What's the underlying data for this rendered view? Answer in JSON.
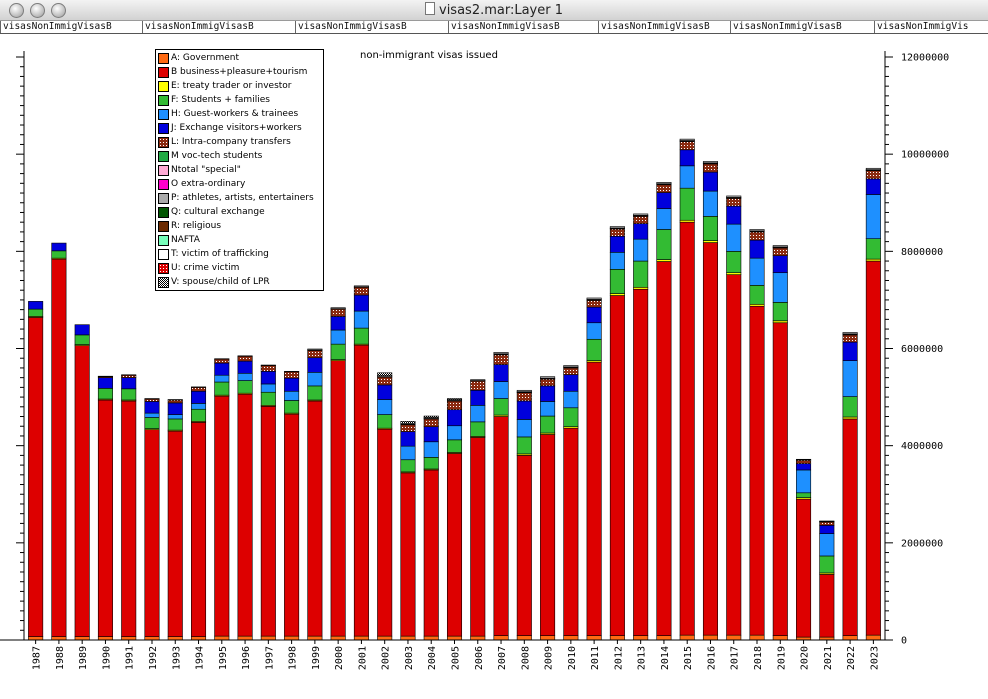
{
  "window": {
    "title": "visas2.mar:Layer 1"
  },
  "column_headers": [
    "visasNonImmigVisasB",
    "visasNonImmigVisasB",
    "visasNonImmigVisasB",
    "visasNonImmigVisasB",
    "visasNonImmigVisasB",
    "visasNonImmigVisasB",
    "visasNonImmigVis"
  ],
  "legend": [
    {
      "label": "A: Government",
      "color": "#ff6a13",
      "pattern": ""
    },
    {
      "label": "B business+pleasure+tourism",
      "color": "#dd0000",
      "pattern": ""
    },
    {
      "label": "E: treaty trader or investor",
      "color": "#ffff00",
      "pattern": ""
    },
    {
      "label": "F: Students + families",
      "color": "#33bb33",
      "pattern": ""
    },
    {
      "label": "H: Guest-workers & trainees",
      "color": "#1e90ff",
      "pattern": ""
    },
    {
      "label": "J: Exchange visitors+workers",
      "color": "#0000dd",
      "pattern": ""
    },
    {
      "label": "L: Intra-company transfers",
      "color": "#8b2a10",
      "pattern": "dots"
    },
    {
      "label": "M voc-tech students",
      "color": "#22aa44",
      "pattern": ""
    },
    {
      "label": "Ntotal \"special\"",
      "color": "#ffaad4",
      "pattern": ""
    },
    {
      "label": "O extra-ordinary",
      "color": "#ff00cc",
      "pattern": ""
    },
    {
      "label": "P: athletes, artists, entertainers",
      "color": "#aaaaaa",
      "pattern": ""
    },
    {
      "label": "Q: cultural exchange",
      "color": "#005500",
      "pattern": ""
    },
    {
      "label": "R: religious",
      "color": "#6b2a00",
      "pattern": ""
    },
    {
      "label": "NAFTA",
      "color": "#77ffbb",
      "pattern": ""
    },
    {
      "label": "T: victim of trafficking",
      "color": "#ffffff",
      "pattern": ""
    },
    {
      "label": "U: crime victim",
      "color": "#dd0000",
      "pattern": "grid"
    },
    {
      "label": "V: spouse/child of LPR",
      "color": "#ffffff",
      "pattern": "checker"
    }
  ],
  "chart_data": {
    "type": "bar",
    "stacked": true,
    "title": "non-immigrant visas issued",
    "y_axis_side": "right",
    "ylim": [
      0,
      12000000
    ],
    "y_ticks": [
      "0",
      "2000000",
      "4000000",
      "6000000",
      "8000000",
      "10000000",
      "12000000"
    ],
    "categories": [
      "1987",
      "1988",
      "1989",
      "1990",
      "1991",
      "1992",
      "1993",
      "1994",
      "1995",
      "1996",
      "1997",
      "1998",
      "1999",
      "2000",
      "2001",
      "2002",
      "2003",
      "2004",
      "2005",
      "2006",
      "2007",
      "2008",
      "2009",
      "2010",
      "2011",
      "2012",
      "2013",
      "2014",
      "2015",
      "2016",
      "2017",
      "2018",
      "2019",
      "2020",
      "2021",
      "2022",
      "2023"
    ],
    "series": [
      {
        "name": "A: Government",
        "values": [
          70000,
          70000,
          70000,
          70000,
          70000,
          70000,
          70000,
          70000,
          80000,
          80000,
          80000,
          80000,
          80000,
          80000,
          80000,
          80000,
          80000,
          80000,
          80000,
          80000,
          90000,
          90000,
          90000,
          90000,
          90000,
          90000,
          90000,
          90000,
          100000,
          100000,
          100000,
          100000,
          90000,
          60000,
          60000,
          90000,
          100000
        ]
      },
      {
        "name": "B business+pleasure+tourism",
        "values": [
          6570000,
          7770000,
          5990000,
          4870000,
          4850000,
          4260000,
          4230000,
          4410000,
          4940000,
          4980000,
          4730000,
          4570000,
          4840000,
          5670000,
          5990000,
          4260000,
          3360000,
          3420000,
          3760000,
          4090000,
          4510000,
          3710000,
          4140000,
          4270000,
          5630000,
          7000000,
          7130000,
          7700000,
          8500000,
          8080000,
          7420000,
          6770000,
          6440000,
          2840000,
          1290000,
          4460000,
          7700000
        ]
      },
      {
        "name": "E: treaty trader or investor",
        "values": [
          20000,
          20000,
          20000,
          20000,
          20000,
          20000,
          20000,
          20000,
          20000,
          20000,
          20000,
          20000,
          20000,
          20000,
          20000,
          20000,
          20000,
          20000,
          20000,
          20000,
          30000,
          30000,
          30000,
          30000,
          30000,
          40000,
          40000,
          40000,
          40000,
          40000,
          40000,
          40000,
          40000,
          30000,
          30000,
          40000,
          40000
        ]
      },
      {
        "name": "F: Students + families",
        "values": [
          150000,
          150000,
          200000,
          220000,
          230000,
          230000,
          230000,
          250000,
          270000,
          260000,
          270000,
          260000,
          290000,
          320000,
          330000,
          280000,
          250000,
          240000,
          260000,
          300000,
          340000,
          350000,
          350000,
          390000,
          440000,
          500000,
          540000,
          620000,
          660000,
          500000,
          440000,
          390000,
          380000,
          100000,
          350000,
          420000,
          420000
        ]
      },
      {
        "name": "H: Guest-workers & trainees",
        "values": [
          0,
          0,
          0,
          0,
          0,
          90000,
          90000,
          120000,
          140000,
          150000,
          170000,
          190000,
          280000,
          290000,
          350000,
          310000,
          280000,
          320000,
          290000,
          340000,
          350000,
          360000,
          300000,
          340000,
          340000,
          350000,
          450000,
          430000,
          460000,
          520000,
          560000,
          560000,
          610000,
          470000,
          460000,
          740000,
          910000
        ]
      },
      {
        "name": "J: Exchange visitors+workers",
        "values": [
          160000,
          160000,
          210000,
          220000,
          230000,
          240000,
          240000,
          250000,
          250000,
          250000,
          260000,
          270000,
          300000,
          280000,
          330000,
          300000,
          300000,
          310000,
          330000,
          310000,
          350000,
          380000,
          320000,
          340000,
          320000,
          330000,
          320000,
          330000,
          330000,
          390000,
          370000,
          370000,
          350000,
          130000,
          170000,
          380000,
          320000
        ]
      },
      {
        "name": "L: Intra-company transfers",
        "values": [
          0,
          0,
          0,
          20000,
          50000,
          50000,
          60000,
          80000,
          80000,
          100000,
          120000,
          130000,
          150000,
          150000,
          160000,
          160000,
          140000,
          160000,
          180000,
          190000,
          200000,
          170000,
          140000,
          140000,
          140000,
          150000,
          150000,
          160000,
          170000,
          170000,
          160000,
          170000,
          160000,
          70000,
          70000,
          150000,
          170000
        ]
      },
      {
        "name": "M voc-tech students",
        "values": [
          0,
          0,
          0,
          10000,
          10000,
          10000,
          10000,
          10000,
          10000,
          10000,
          10000,
          10000,
          10000,
          10000,
          10000,
          10000,
          10000,
          10000,
          10000,
          10000,
          10000,
          10000,
          10000,
          10000,
          10000,
          10000,
          10000,
          10000,
          10000,
          10000,
          10000,
          10000,
          10000,
          5000,
          5000,
          10000,
          10000
        ]
      },
      {
        "name": "Ntotal \"special\"",
        "values": [
          0,
          0,
          0,
          0,
          0,
          0,
          0,
          0,
          0,
          0,
          0,
          0,
          0,
          0,
          0,
          0,
          0,
          0,
          0,
          0,
          0,
          0,
          0,
          0,
          0,
          0,
          0,
          0,
          0,
          0,
          0,
          0,
          0,
          0,
          0,
          0,
          0
        ]
      },
      {
        "name": "O extra-ordinary",
        "values": [
          0,
          0,
          0,
          0,
          0,
          0,
          0,
          0,
          0,
          0,
          0,
          0,
          0,
          0,
          0,
          0,
          0,
          0,
          0,
          0,
          10000,
          10000,
          10000,
          10000,
          10000,
          10000,
          10000,
          10000,
          10000,
          10000,
          10000,
          10000,
          10000,
          5000,
          5000,
          10000,
          10000
        ]
      },
      {
        "name": "P: athletes, artists, entertainers",
        "values": [
          0,
          0,
          0,
          0,
          0,
          0,
          0,
          0,
          0,
          0,
          0,
          0,
          20000,
          20000,
          20000,
          20000,
          20000,
          20000,
          20000,
          20000,
          30000,
          30000,
          30000,
          30000,
          30000,
          30000,
          30000,
          30000,
          30000,
          30000,
          30000,
          30000,
          30000,
          10000,
          10000,
          30000,
          30000
        ]
      },
      {
        "name": "Q: cultural exchange",
        "values": [
          0,
          0,
          0,
          0,
          0,
          0,
          0,
          0,
          0,
          0,
          0,
          0,
          0,
          0,
          0,
          0,
          0,
          0,
          0,
          0,
          0,
          0,
          0,
          0,
          0,
          0,
          0,
          0,
          0,
          0,
          0,
          0,
          0,
          0,
          0,
          0,
          0
        ]
      },
      {
        "name": "R: religious",
        "values": [
          0,
          0,
          0,
          0,
          0,
          0,
          0,
          0,
          0,
          0,
          0,
          0,
          0,
          0,
          0,
          0,
          0,
          0,
          0,
          0,
          0,
          0,
          0,
          0,
          0,
          0,
          0,
          0,
          0,
          0,
          0,
          0,
          0,
          0,
          0,
          0,
          0
        ]
      },
      {
        "name": "NAFTA",
        "values": [
          0,
          0,
          0,
          0,
          0,
          0,
          0,
          0,
          0,
          0,
          0,
          0,
          0,
          0,
          0,
          0,
          0,
          0,
          0,
          0,
          0,
          0,
          0,
          0,
          0,
          0,
          0,
          0,
          0,
          0,
          0,
          0,
          0,
          0,
          0,
          0,
          0
        ]
      },
      {
        "name": "T: victim of trafficking",
        "values": [
          0,
          0,
          0,
          0,
          0,
          0,
          0,
          0,
          0,
          0,
          0,
          0,
          0,
          0,
          0,
          0,
          0,
          0,
          0,
          0,
          0,
          0,
          0,
          0,
          0,
          0,
          0,
          0,
          0,
          0,
          0,
          0,
          0,
          0,
          0,
          0,
          0
        ]
      },
      {
        "name": "U: crime victim",
        "values": [
          0,
          0,
          0,
          0,
          0,
          0,
          0,
          0,
          0,
          0,
          0,
          0,
          0,
          0,
          0,
          0,
          0,
          0,
          0,
          0,
          0,
          0,
          0,
          0,
          0,
          0,
          0,
          0,
          0,
          0,
          0,
          0,
          0,
          0,
          0,
          0,
          0
        ]
      },
      {
        "name": "V: spouse/child of LPR",
        "values": [
          0,
          0,
          0,
          0,
          0,
          0,
          0,
          0,
          0,
          0,
          0,
          0,
          0,
          0,
          0,
          60000,
          40000,
          30000,
          20000,
          0,
          0,
          0,
          0,
          0,
          0,
          0,
          0,
          0,
          0,
          0,
          0,
          0,
          0,
          0,
          0,
          0,
          0
        ]
      }
    ],
    "grid": false,
    "legend_position": "top-left"
  }
}
